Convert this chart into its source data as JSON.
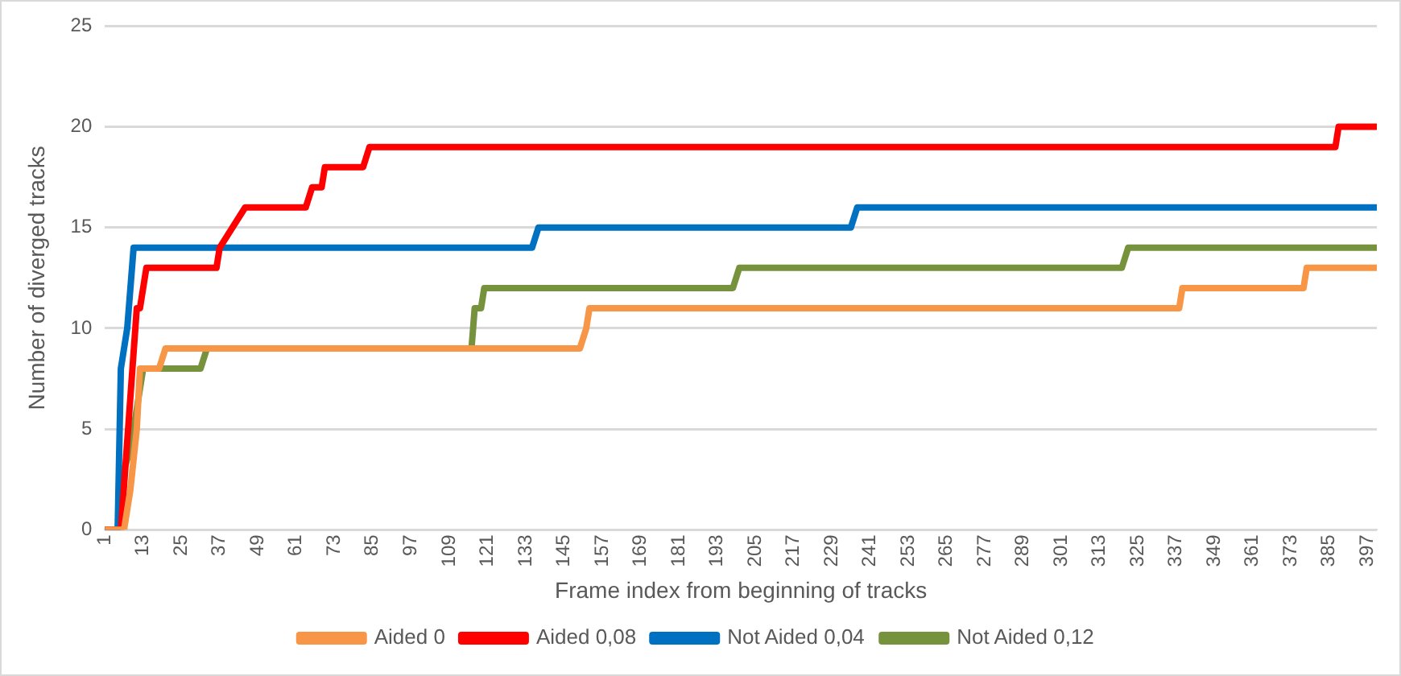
{
  "chart_data": {
    "type": "line",
    "xlabel": "Frame index from beginning of tracks",
    "ylabel": "Number of diverged tracks",
    "xlim": [
      1,
      400
    ],
    "xticks": [
      1,
      13,
      25,
      37,
      49,
      61,
      73,
      85,
      97,
      109,
      121,
      133,
      145,
      157,
      169,
      181,
      193,
      205,
      217,
      229,
      241,
      253,
      265,
      277,
      289,
      301,
      313,
      325,
      337,
      349,
      361,
      373,
      385,
      397
    ],
    "ylim": [
      0,
      25
    ],
    "yticks": [
      0,
      5,
      10,
      15,
      20,
      25
    ],
    "grid": "y",
    "legend": "bottom",
    "marker": "none",
    "line_style": "solid",
    "series": [
      {
        "name": "Aided 0",
        "color": "#f79646",
        "x": [
          1,
          7,
          9,
          11,
          12,
          18,
          20,
          150,
          152,
          153,
          338,
          339,
          377,
          378,
          400
        ],
        "values": [
          0,
          0,
          2,
          5,
          8,
          8,
          9,
          9,
          10,
          11,
          11,
          12,
          12,
          13,
          13
        ]
      },
      {
        "name": "Aided 0,08",
        "color": "#ff0000",
        "x": [
          1,
          6,
          11,
          12,
          14,
          36,
          37,
          45,
          64,
          66,
          69,
          70,
          82,
          84,
          387,
          388,
          400
        ],
        "values": [
          0,
          0,
          11,
          11,
          13,
          13,
          14,
          16,
          16,
          17,
          17,
          18,
          18,
          19,
          19,
          20,
          20
        ]
      },
      {
        "name": "Not Aided 0,04",
        "color": "#0070c0",
        "x": [
          1,
          5,
          6,
          8,
          10,
          135,
          137,
          235,
          237,
          400
        ],
        "values": [
          0,
          0,
          8,
          10,
          14,
          14,
          15,
          15,
          16,
          16
        ]
      },
      {
        "name": "Not Aided 0,12",
        "color": "#76923c",
        "x": [
          1,
          5,
          7,
          9,
          13,
          31,
          33,
          116,
          117,
          119,
          120,
          198,
          200,
          320,
          322,
          400
        ],
        "values": [
          0,
          0,
          3,
          4,
          8,
          8,
          9,
          9,
          11,
          11,
          12,
          12,
          13,
          13,
          14,
          14
        ]
      }
    ]
  }
}
